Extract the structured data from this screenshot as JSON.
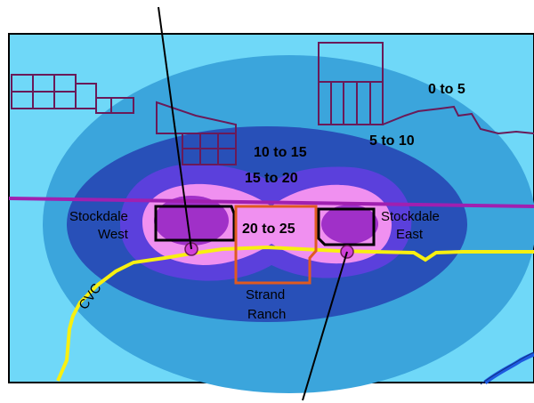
{
  "map": {
    "zones": [
      {
        "label": "0 to 5"
      },
      {
        "label": "5 to 10"
      },
      {
        "label": "10 to 15"
      },
      {
        "label": "15 to 20"
      },
      {
        "label": "20 to 25"
      }
    ],
    "places": {
      "stockdale_west_line1": "Stockdale",
      "stockdale_west_line2": "West",
      "stockdale_east_line1": "Stockdale",
      "stockdale_east_line2": "East",
      "strand_ranch_line1": "Strand",
      "strand_ranch_line2": "Ranch"
    },
    "canal_label": "CVC",
    "colors": {
      "background": "#6FD8F8",
      "zone_0_5": "#6FD8F8",
      "zone_5_10": "#3BA5DC",
      "zone_10_15": "#2850B8",
      "zone_15_20": "#5B40DC",
      "zone_20_25": "#F090F0",
      "core": "#A030C8",
      "canal": "#F8F010",
      "road": "#A020B0",
      "parcels": "#6A1A58",
      "strand_boundary": "#E05A20",
      "river": "#1E5AE0"
    }
  }
}
